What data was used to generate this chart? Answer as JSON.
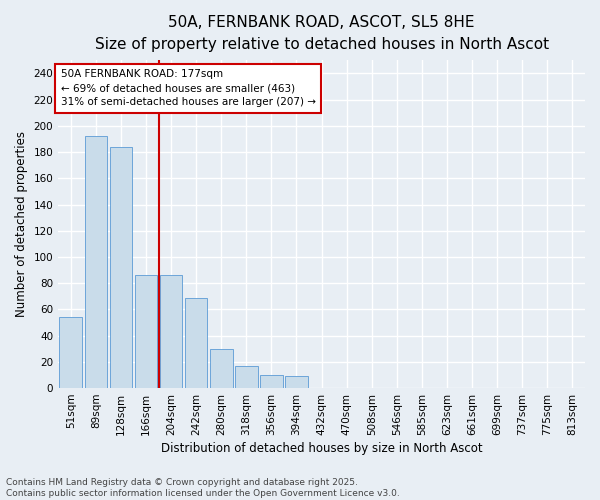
{
  "title": "50A, FERNBANK ROAD, ASCOT, SL5 8HE",
  "subtitle": "Size of property relative to detached houses in North Ascot",
  "xlabel": "Distribution of detached houses by size in North Ascot",
  "ylabel": "Number of detached properties",
  "bin_labels": [
    "51sqm",
    "89sqm",
    "128sqm",
    "166sqm",
    "204sqm",
    "242sqm",
    "280sqm",
    "318sqm",
    "356sqm",
    "394sqm",
    "432sqm",
    "470sqm",
    "508sqm",
    "546sqm",
    "585sqm",
    "623sqm",
    "661sqm",
    "699sqm",
    "737sqm",
    "775sqm",
    "813sqm"
  ],
  "bar_heights": [
    54,
    192,
    184,
    86,
    86,
    69,
    30,
    17,
    10,
    9,
    0,
    0,
    0,
    0,
    0,
    0,
    0,
    0,
    0,
    0,
    0
  ],
  "bar_color": "#c9dcea",
  "bar_edgecolor": "#5b9bd5",
  "background_color": "#e8eef4",
  "grid_color": "#ffffff",
  "red_line_x": 3.5,
  "annotation_text": "50A FERNBANK ROAD: 177sqm\n← 69% of detached houses are smaller (463)\n31% of semi-detached houses are larger (207) →",
  "annotation_box_facecolor": "#ffffff",
  "annotation_box_edgecolor": "#cc0000",
  "ylim": [
    0,
    250
  ],
  "yticks": [
    0,
    20,
    40,
    60,
    80,
    100,
    120,
    140,
    160,
    180,
    200,
    220,
    240
  ],
  "footer_line1": "Contains HM Land Registry data © Crown copyright and database right 2025.",
  "footer_line2": "Contains public sector information licensed under the Open Government Licence v3.0.",
  "title_fontsize": 11,
  "subtitle_fontsize": 9.5,
  "label_fontsize": 8.5,
  "tick_fontsize": 7.5,
  "annotation_fontsize": 7.5,
  "footer_fontsize": 6.5
}
